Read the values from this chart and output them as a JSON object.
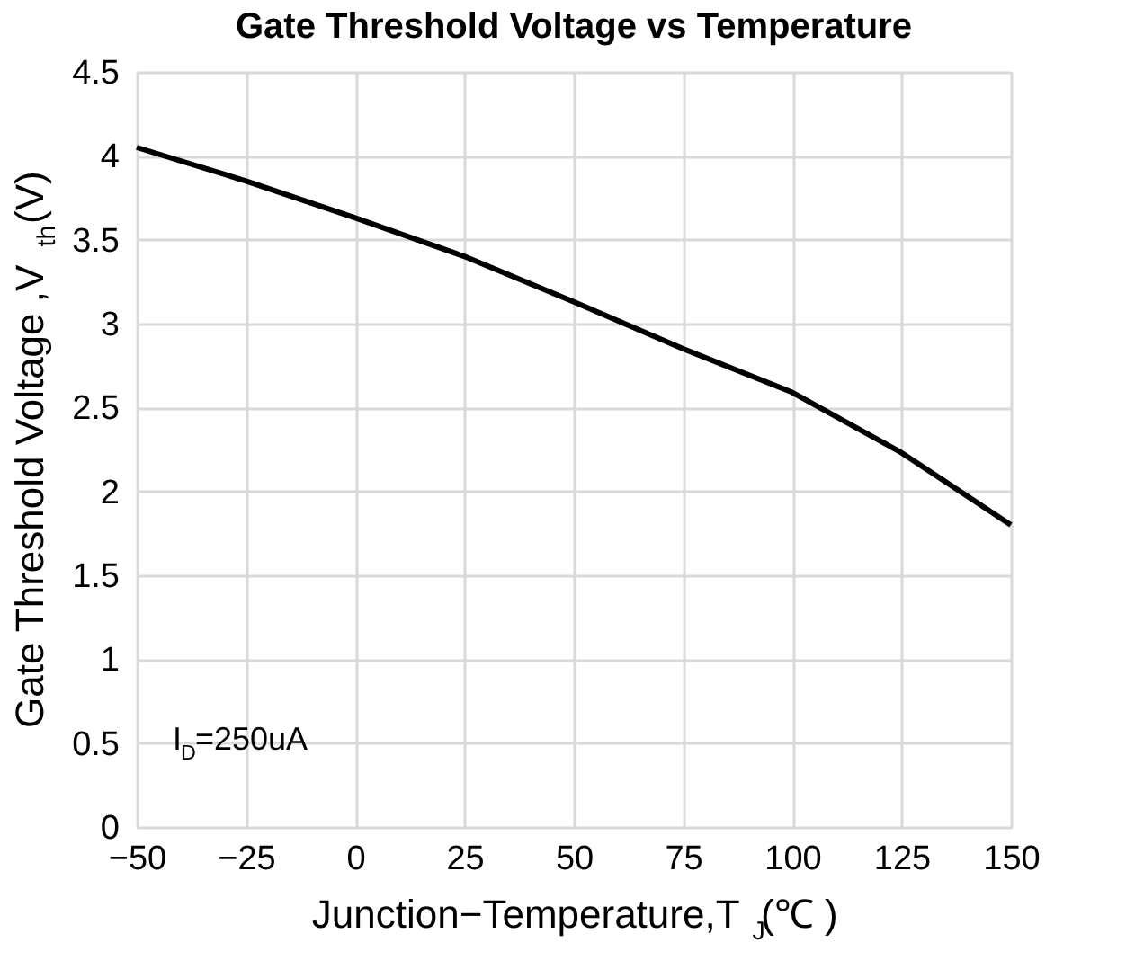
{
  "chart_data": {
    "type": "line",
    "title": "Gate Threshold Voltage vs Temperature",
    "xlabel": "Junction−Temperature,T$_{J}$(℃ )",
    "ylabel": "Gate Threshold Voltage ,V$_{th}$(V)",
    "x": [
      -50,
      -25,
      0,
      25,
      50,
      75,
      100,
      125,
      150
    ],
    "series": [
      {
        "color": "#000000",
        "values": [
          4.05,
          3.85,
          3.63,
          3.4,
          3.13,
          2.85,
          2.59,
          2.23,
          1.8
        ]
      }
    ],
    "xlim": [
      -50,
      150
    ],
    "xticks": [
      -50,
      -25,
      0,
      25,
      50,
      75,
      100,
      125,
      150
    ],
    "ylim": [
      0,
      4.5
    ],
    "yticks": [
      0,
      0.5,
      1,
      1.5,
      2,
      2.5,
      3,
      3.5,
      4,
      4.5
    ],
    "annotations": [
      "I$_{D}$=250uA"
    ],
    "grid": true,
    "marker": "none",
    "line_style": "solid"
  }
}
